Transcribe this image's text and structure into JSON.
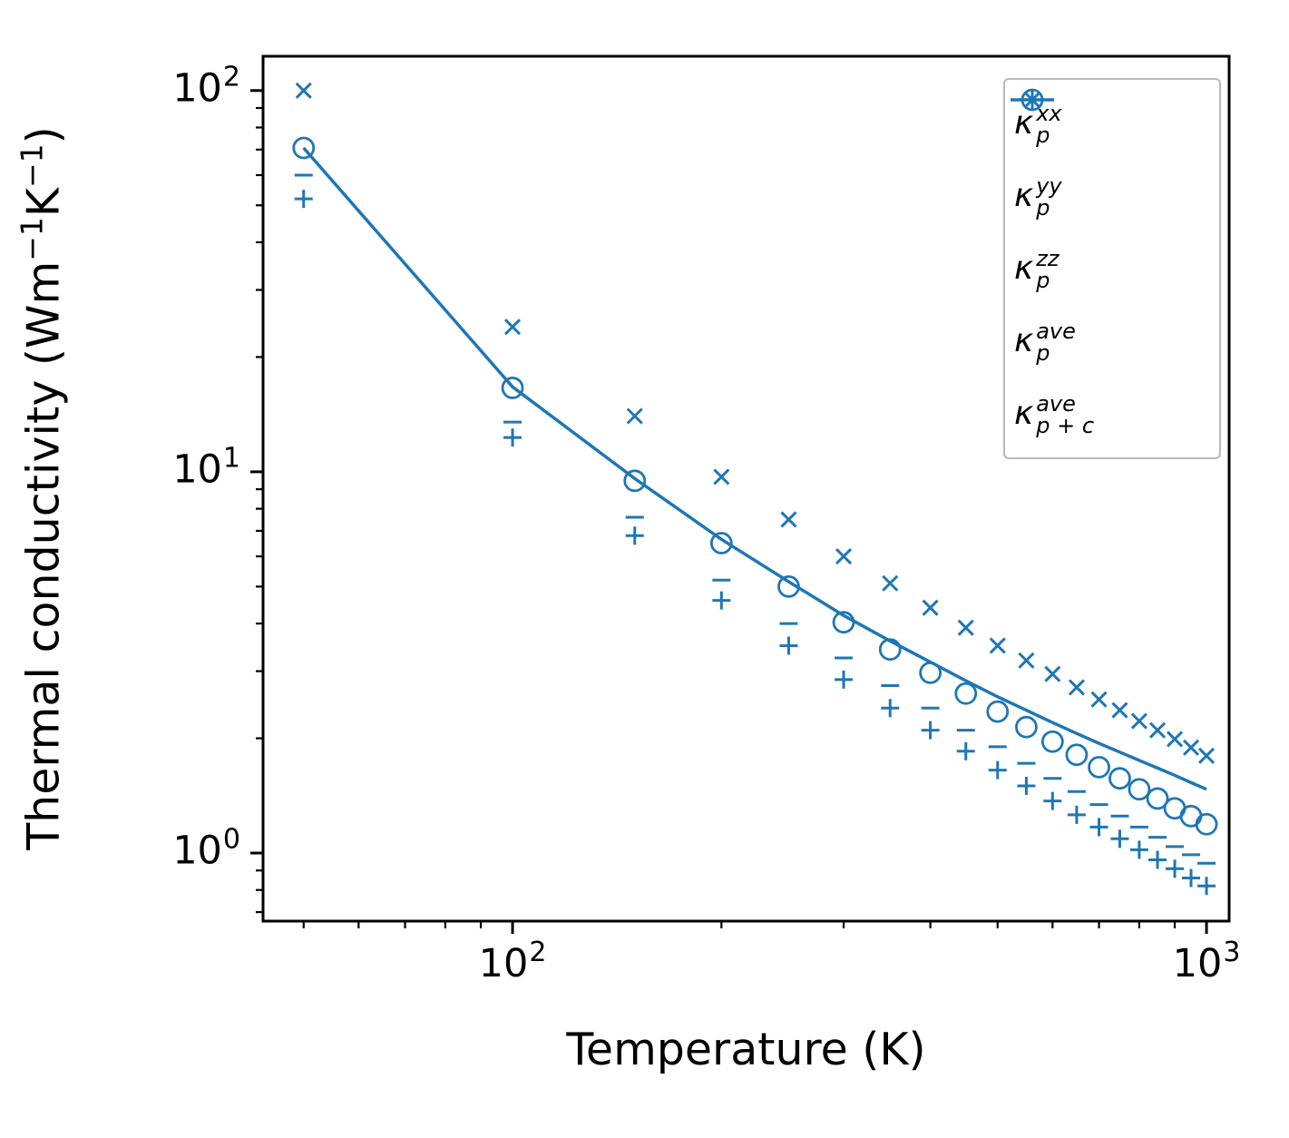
{
  "chart_data": {
    "type": "scatter",
    "title": "",
    "xlabel": "Temperature (K)",
    "ylabel_parts": [
      {
        "text": "Thermal conductivity (Wm"
      },
      {
        "sup": "−1"
      },
      {
        "text": "K"
      },
      {
        "sup": "−1"
      },
      {
        "text": ")"
      }
    ],
    "x_axis": {
      "scale": "log",
      "lim": [
        43.7,
        1078
      ]
    },
    "y_axis": {
      "scale": "log",
      "lim": [
        0.663,
        123
      ]
    },
    "x_ticks": [
      {
        "value": 100,
        "base": "10",
        "exp": "2"
      },
      {
        "value": 1000,
        "base": "10",
        "exp": "3"
      }
    ],
    "y_ticks": [
      {
        "value": 1,
        "base": "10",
        "exp": "0"
      },
      {
        "value": 10,
        "base": "10",
        "exp": "1"
      },
      {
        "value": 100,
        "base": "10",
        "exp": "2"
      }
    ],
    "grid": false,
    "legend_position": "upper right",
    "colors": {
      "series": "#1f77b4",
      "spine": "#000000",
      "legend_border": "#b9b9b9",
      "background": "#ffffff"
    },
    "x": [
      50,
      100,
      150,
      200,
      250,
      300,
      350,
      400,
      450,
      500,
      550,
      600,
      650,
      700,
      750,
      800,
      850,
      900,
      950,
      1000
    ],
    "series": [
      {
        "name": "kappa_p_xx",
        "marker": "plus",
        "values": [
          52,
          12.3,
          6.8,
          4.6,
          3.5,
          2.85,
          2.4,
          2.1,
          1.85,
          1.65,
          1.5,
          1.37,
          1.26,
          1.17,
          1.09,
          1.02,
          0.96,
          0.91,
          0.86,
          0.82
        ]
      },
      {
        "name": "kappa_p_yy",
        "marker": "cross",
        "values": [
          100,
          24,
          14,
          9.7,
          7.5,
          6.0,
          5.1,
          4.4,
          3.9,
          3.5,
          3.2,
          2.95,
          2.72,
          2.53,
          2.37,
          2.22,
          2.1,
          1.99,
          1.89,
          1.8
        ]
      },
      {
        "name": "kappa_p_zz",
        "marker": "minus",
        "values": [
          60,
          13.5,
          7.6,
          5.2,
          4.0,
          3.25,
          2.75,
          2.4,
          2.1,
          1.9,
          1.72,
          1.57,
          1.45,
          1.34,
          1.25,
          1.17,
          1.1,
          1.04,
          0.99,
          0.94
        ]
      },
      {
        "name": "kappa_p_ave",
        "marker": "circle",
        "values": [
          70.7,
          16.6,
          9.47,
          6.5,
          5.0,
          4.03,
          3.42,
          2.97,
          2.62,
          2.35,
          2.14,
          1.96,
          1.81,
          1.68,
          1.57,
          1.47,
          1.39,
          1.31,
          1.25,
          1.19
        ]
      },
      {
        "name": "kappa_p_plus_c_ave",
        "marker": "line",
        "values": [
          70.7,
          16.7,
          9.6,
          6.65,
          5.15,
          4.2,
          3.6,
          3.17,
          2.83,
          2.57,
          2.37,
          2.2,
          2.06,
          1.94,
          1.84,
          1.75,
          1.67,
          1.6,
          1.53,
          1.47
        ]
      }
    ],
    "legend": [
      {
        "marker": "plus",
        "base": "κ",
        "sup": "xx",
        "sub": "p"
      },
      {
        "marker": "cross",
        "base": "κ",
        "sup": "yy",
        "sub": "p"
      },
      {
        "marker": "minus",
        "base": "κ",
        "sup": "zz",
        "sub": "p"
      },
      {
        "marker": "circle",
        "base": "κ",
        "sup": "ave",
        "sub": "p"
      },
      {
        "marker": "line",
        "base": "κ",
        "sup": "ave",
        "sub": "p + c"
      }
    ]
  }
}
